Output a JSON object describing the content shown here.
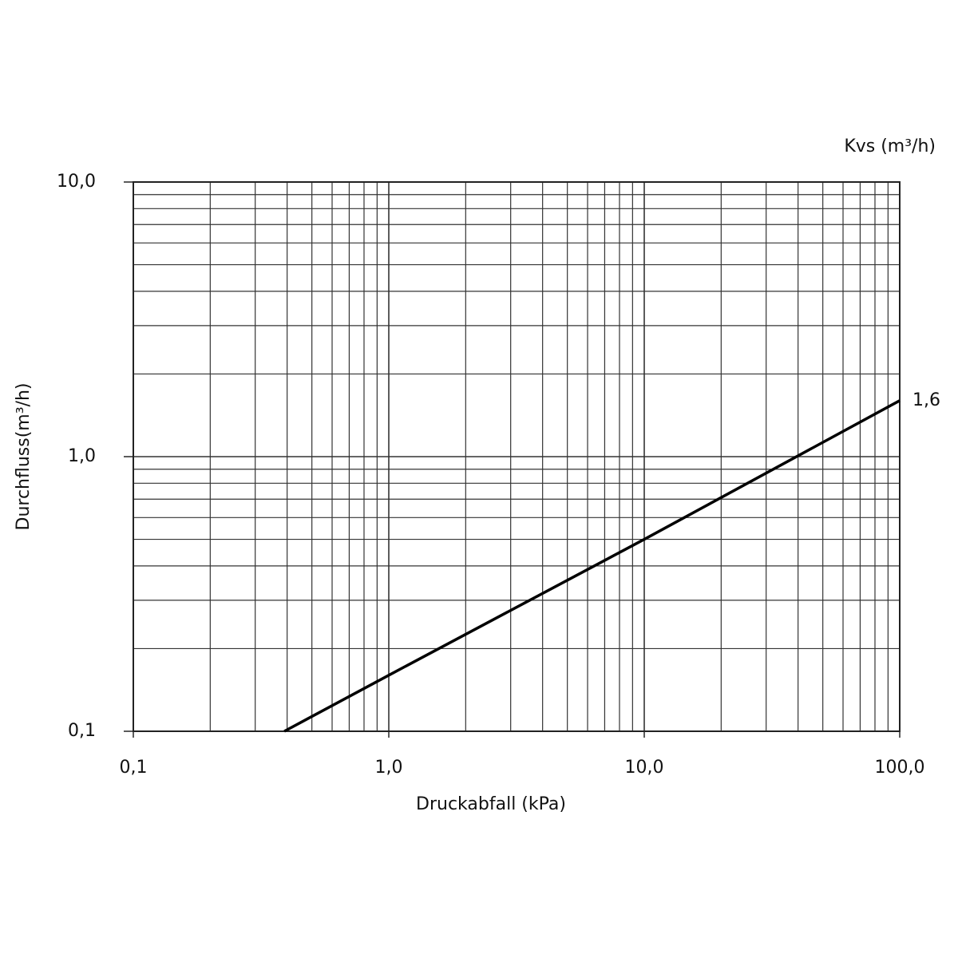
{
  "chart_data": {
    "type": "line",
    "xlabel": "Druckabfall (kPa)",
    "ylabel": "Durchfluss(m³/h)",
    "legend_title": "Kvs (m³/h)",
    "xscale": "log",
    "yscale": "log",
    "grid": true,
    "minor_grid": true,
    "xlim": [
      0.1,
      100
    ],
    "ylim": [
      0.1,
      10
    ],
    "xticks": [
      {
        "value": 0.1,
        "label": "0,1"
      },
      {
        "value": 1,
        "label": "1,0"
      },
      {
        "value": 10,
        "label": "10,0"
      },
      {
        "value": 100,
        "label": "100,0"
      }
    ],
    "yticks": [
      {
        "value": 0.1,
        "label": "0,1"
      },
      {
        "value": 1,
        "label": "1,0"
      },
      {
        "value": 10,
        "label": "10,0"
      }
    ],
    "series": [
      {
        "name": "1,6",
        "color": "#000000",
        "x": [
          0.39,
          1,
          10,
          100
        ],
        "values": [
          0.1,
          0.16,
          0.5,
          1.6
        ]
      }
    ]
  }
}
